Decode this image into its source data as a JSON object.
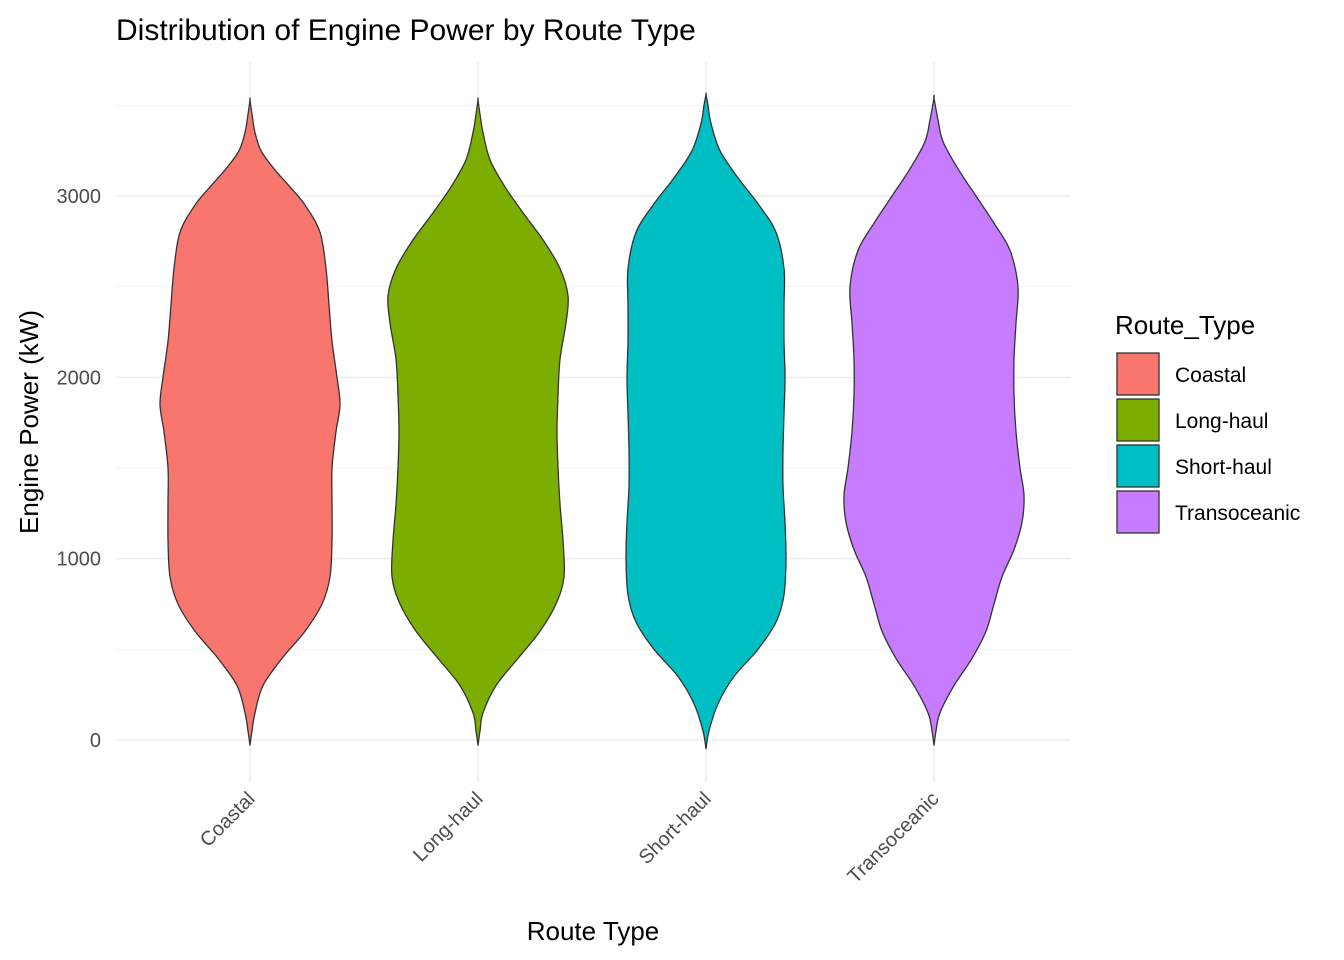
{
  "chart_data": {
    "type": "violin",
    "title": "Distribution of Engine Power by Route Type",
    "xlabel": "Route Type",
    "ylabel": "Engine Power (kW)",
    "categories": [
      "Coastal",
      "Long-haul",
      "Short-haul",
      "Transoceanic"
    ],
    "ylim": [
      -200,
      3700
    ],
    "yticks": [
      0,
      1000,
      2000,
      3000
    ],
    "ytick_labels": [
      "0",
      "1000",
      "2000",
      "3000"
    ],
    "grid": true,
    "legend": {
      "title": "Route_Type",
      "position": "right",
      "entries": [
        "Coastal",
        "Long-haul",
        "Short-haul",
        "Transoceanic"
      ]
    },
    "colors": {
      "Coastal": "#F8766D",
      "Long-haul": "#7CAE00",
      "Short-haul": "#00BFC4",
      "Transoceanic": "#C77CFF"
    },
    "series": [
      {
        "name": "Coastal",
        "range": [
          -30,
          3530
        ],
        "density_profile": [
          [
            -30,
            0.0
          ],
          [
            50,
            0.02
          ],
          [
            150,
            0.05
          ],
          [
            300,
            0.13
          ],
          [
            450,
            0.32
          ],
          [
            600,
            0.55
          ],
          [
            750,
            0.72
          ],
          [
            900,
            0.8
          ],
          [
            1100,
            0.82
          ],
          [
            1300,
            0.82
          ],
          [
            1500,
            0.82
          ],
          [
            1700,
            0.86
          ],
          [
            1850,
            0.9
          ],
          [
            2000,
            0.87
          ],
          [
            2200,
            0.82
          ],
          [
            2400,
            0.79
          ],
          [
            2600,
            0.76
          ],
          [
            2800,
            0.7
          ],
          [
            2950,
            0.55
          ],
          [
            3050,
            0.4
          ],
          [
            3150,
            0.24
          ],
          [
            3250,
            0.11
          ],
          [
            3350,
            0.05
          ],
          [
            3450,
            0.02
          ],
          [
            3530,
            0.0
          ]
        ]
      },
      {
        "name": "Long-haul",
        "range": [
          -30,
          3530
        ],
        "density_profile": [
          [
            -30,
            0.0
          ],
          [
            50,
            0.02
          ],
          [
            150,
            0.05
          ],
          [
            300,
            0.18
          ],
          [
            450,
            0.4
          ],
          [
            600,
            0.62
          ],
          [
            750,
            0.78
          ],
          [
            900,
            0.86
          ],
          [
            1100,
            0.85
          ],
          [
            1300,
            0.82
          ],
          [
            1500,
            0.8
          ],
          [
            1700,
            0.79
          ],
          [
            1900,
            0.8
          ],
          [
            2100,
            0.82
          ],
          [
            2300,
            0.88
          ],
          [
            2450,
            0.9
          ],
          [
            2600,
            0.82
          ],
          [
            2750,
            0.66
          ],
          [
            2900,
            0.46
          ],
          [
            3050,
            0.27
          ],
          [
            3200,
            0.12
          ],
          [
            3350,
            0.05
          ],
          [
            3450,
            0.02
          ],
          [
            3530,
            0.0
          ]
        ]
      },
      {
        "name": "Short-haul",
        "range": [
          -50,
          3560
        ],
        "density_profile": [
          [
            -50,
            0.0
          ],
          [
            50,
            0.03
          ],
          [
            200,
            0.12
          ],
          [
            350,
            0.28
          ],
          [
            500,
            0.52
          ],
          [
            650,
            0.7
          ],
          [
            800,
            0.78
          ],
          [
            1000,
            0.8
          ],
          [
            1200,
            0.79
          ],
          [
            1400,
            0.77
          ],
          [
            1600,
            0.77
          ],
          [
            1800,
            0.78
          ],
          [
            2000,
            0.79
          ],
          [
            2200,
            0.78
          ],
          [
            2400,
            0.78
          ],
          [
            2600,
            0.78
          ],
          [
            2800,
            0.7
          ],
          [
            2950,
            0.53
          ],
          [
            3100,
            0.32
          ],
          [
            3250,
            0.14
          ],
          [
            3400,
            0.05
          ],
          [
            3500,
            0.02
          ],
          [
            3560,
            0.0
          ]
        ]
      },
      {
        "name": "Transoceanic",
        "range": [
          -30,
          3540
        ],
        "density_profile": [
          [
            -30,
            0.0
          ],
          [
            50,
            0.02
          ],
          [
            150,
            0.06
          ],
          [
            300,
            0.2
          ],
          [
            450,
            0.38
          ],
          [
            600,
            0.52
          ],
          [
            750,
            0.6
          ],
          [
            900,
            0.68
          ],
          [
            1050,
            0.8
          ],
          [
            1200,
            0.88
          ],
          [
            1350,
            0.9
          ],
          [
            1500,
            0.86
          ],
          [
            1700,
            0.82
          ],
          [
            1900,
            0.8
          ],
          [
            2100,
            0.8
          ],
          [
            2300,
            0.82
          ],
          [
            2500,
            0.84
          ],
          [
            2700,
            0.76
          ],
          [
            2850,
            0.6
          ],
          [
            3000,
            0.42
          ],
          [
            3150,
            0.24
          ],
          [
            3300,
            0.09
          ],
          [
            3420,
            0.04
          ],
          [
            3540,
            0.0
          ]
        ]
      }
    ]
  }
}
